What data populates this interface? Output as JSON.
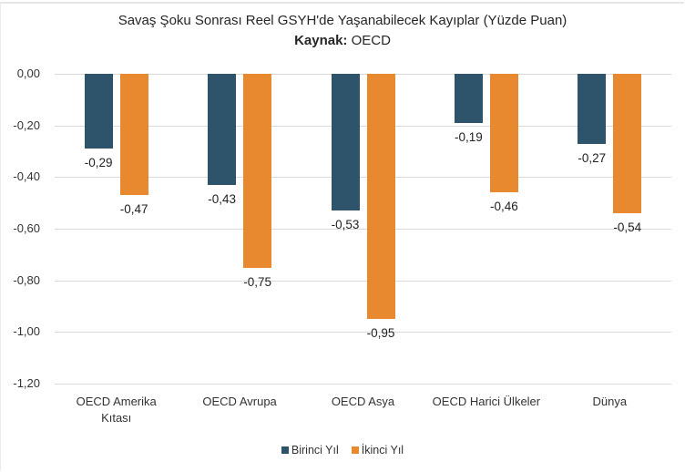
{
  "chart_data": {
    "type": "bar",
    "title": "Savaş Şoku Sonrası Reel GSYH'de Yaşanabilecek Kayıplar (Yüzde Puan)",
    "subtitle_label": "Kaynak:",
    "subtitle_value": "OECD",
    "categories": [
      "OECD Amerika Kıtası",
      "OECD Avrupa",
      "OECD Asya",
      "OECD Harici Ülkeler",
      "Dünya"
    ],
    "category_lines": [
      [
        "OECD Amerika",
        "Kıtası"
      ],
      [
        "OECD Avrupa"
      ],
      [
        "OECD Asya"
      ],
      [
        "OECD Harici Ülkeler"
      ],
      [
        "Dünya"
      ]
    ],
    "series": [
      {
        "name": "Birinci Yıl",
        "color": "#2e546b",
        "values": [
          -0.29,
          -0.43,
          -0.53,
          -0.19,
          -0.27
        ],
        "labels": [
          "-0,29",
          "-0,43",
          "-0,53",
          "-0,19",
          "-0,27"
        ]
      },
      {
        "name": "İkinci Yıl",
        "color": "#e8892f",
        "values": [
          -0.47,
          -0.75,
          -0.95,
          -0.46,
          -0.54
        ],
        "labels": [
          "-0,47",
          "-0,75",
          "-0,95",
          "-0,46",
          "-0,54"
        ]
      }
    ],
    "xlabel": "",
    "ylabel": "",
    "ylim": [
      -1.2,
      0
    ],
    "yticks": [
      0,
      -0.2,
      -0.4,
      -0.6,
      -0.8,
      -1.0,
      -1.2
    ],
    "ytick_labels": [
      "0,00",
      "-0,20",
      "-0,40",
      "-0,60",
      "-0,80",
      "-1,00",
      "-1,20"
    ],
    "grid": true,
    "legend_position": "bottom"
  }
}
